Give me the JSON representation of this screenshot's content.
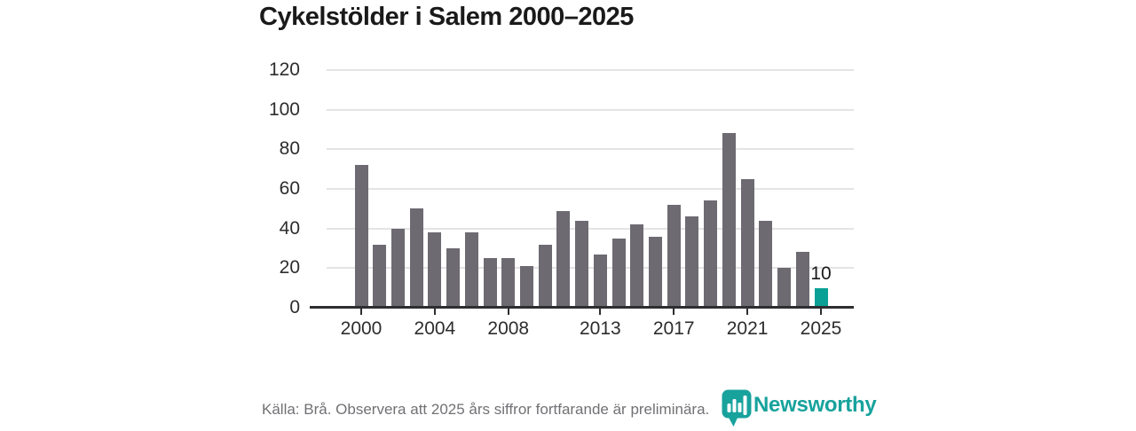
{
  "header": {
    "title": "Cykelstölder i Salem 2000–2025"
  },
  "footer": {
    "source_note": "Källa: Brå. Observera att 2025 års siffror fortfarande är preliminära.",
    "brand_name": "Newsworthy"
  },
  "colors": {
    "background": "#ffffff",
    "title_text": "#1a1a1a",
    "tick_text": "#2d2d2d",
    "gridline": "#e4e3e5",
    "axis": "#2e2e31",
    "bar_default": "#6d6a71",
    "bar_highlight": "#0ba096",
    "footer_text": "#717175",
    "brand_teal": "#17a29c"
  },
  "chart_data": {
    "type": "bar",
    "title": "Cykelstölder i Salem 2000–2025",
    "categories": [
      "2000",
      "2001",
      "2002",
      "2003",
      "2004",
      "2005",
      "2006",
      "2007",
      "2008",
      "2009",
      "2010",
      "2011",
      "2012",
      "2013",
      "2014",
      "2015",
      "2016",
      "2017",
      "2018",
      "2019",
      "2020",
      "2021",
      "2022",
      "2023",
      "2024",
      "2025"
    ],
    "values": [
      72,
      32,
      40,
      50,
      38,
      30,
      38,
      25,
      25,
      21,
      32,
      49,
      44,
      27,
      35,
      42,
      36,
      52,
      46,
      54,
      88,
      65,
      44,
      20,
      28,
      10
    ],
    "highlight_index": 25,
    "bar_label": {
      "index": 25,
      "text": "10"
    },
    "xticks": [
      "2000",
      "2004",
      "2008",
      "2013",
      "2017",
      "2021",
      "2025"
    ],
    "yticks": [
      0,
      20,
      40,
      60,
      80,
      100,
      120
    ],
    "ylim": [
      0,
      120
    ],
    "xlabel": "",
    "ylabel": "",
    "grid": "horizontal",
    "legend": "none"
  }
}
